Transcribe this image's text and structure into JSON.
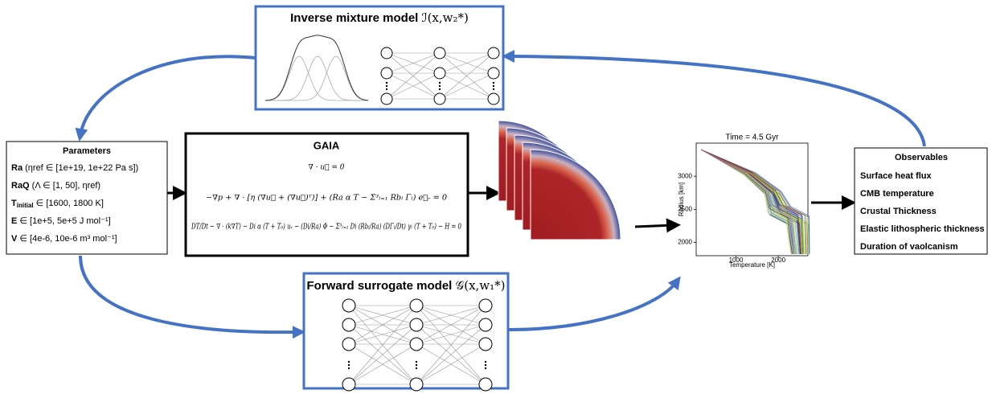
{
  "inverse_model": {
    "title": "Inverse mixture model",
    "formula": "ℐ(x,w₂*)"
  },
  "parameters": {
    "title": "Parameters",
    "items": [
      {
        "label": "Ra",
        "detail": " (ηref ∈ [1e+19, 1e+22 Pa s])"
      },
      {
        "label": "RaQ",
        "detail": " (Λ ∈ [1, 50], ηref)"
      },
      {
        "label": "T",
        "label_sub": "initial",
        "detail": " ∈ [1600, 1800 K]"
      },
      {
        "label": "E",
        "detail": " ∈ [1e+5, 5e+5 J mol⁻¹]"
      },
      {
        "label": "V",
        "detail": " ∈ [4e-6, 10e-6 m³ mol⁻¹]"
      }
    ]
  },
  "gaia": {
    "title": "GAIA",
    "equations": [
      "∇ · u⃗ = 0",
      "−∇p + ∇ · [η (∇u⃗ + (∇u⃗)ᵀ)] + (Ra α T − Σ³ₗ₌₁ Rbₗ Γₗ) e⃗ᵣ = 0",
      "DT/Dt − ∇ · (k∇T) − Di α (T + T₀) uᵣ − (Di/Ra) Φ − Σ³ₗ₌₁ Di (Rbₗ/Ra) (DΓₗ/Dt) γₗ (T + T₀) − H = 0"
    ]
  },
  "plot": {
    "title": "Time = 4.5 Gyr",
    "xlabel": "Temperature [K]",
    "ylabel": "Radius [km]",
    "xlim": [
      60,
      2700
    ],
    "ylim": [
      1800,
      3500
    ],
    "xticks": [
      1000,
      2000
    ],
    "yticks": [
      2000,
      2500,
      3000
    ]
  },
  "observables": {
    "title": "Observables",
    "items": [
      "Surface heat flux",
      "CMB temperature",
      "Crustal Thickness",
      "Elastic lithospheric thickness",
      "Duration of vaolcanism"
    ]
  },
  "forward_model": {
    "title": "Forward surrogate model",
    "formula": "𝒢(x,w₁*)"
  }
}
